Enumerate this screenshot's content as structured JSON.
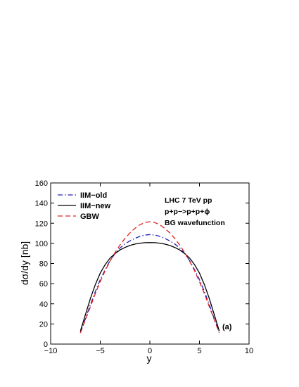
{
  "chart_data": {
    "type": "line",
    "xlabel": "y",
    "ylabel": "dσ/dy [nb]",
    "xlim": [
      -10,
      10
    ],
    "ylim": [
      0,
      160
    ],
    "xticks": [
      -10,
      -5,
      0,
      5,
      10
    ],
    "yticks": [
      0,
      20,
      40,
      60,
      80,
      100,
      120,
      140,
      160
    ],
    "grid": false,
    "legend_position": "top-left",
    "series": [
      {
        "name": "IIM−old",
        "color": "#2020c0",
        "dash": "dash-dot",
        "x": [
          -7,
          -6.5,
          -6,
          -5.5,
          -5,
          -4.5,
          -4,
          -3.5,
          -3,
          -2.5,
          -2,
          -1.5,
          -1,
          -0.5,
          0,
          0.5,
          1,
          1.5,
          2,
          2.5,
          3,
          3.5,
          4,
          4.5,
          5,
          5.5,
          6,
          6.5,
          7
        ],
        "y": [
          12,
          25,
          39,
          52,
          64,
          74,
          83,
          90,
          95.5,
          99.5,
          102.5,
          105,
          107,
          108.3,
          108.7,
          108.3,
          107,
          105,
          102.5,
          99.5,
          95.5,
          90,
          83,
          74,
          64,
          52,
          39,
          25,
          12
        ]
      },
      {
        "name": "IIM−new",
        "color": "#000000",
        "dash": "solid",
        "x": [
          -7,
          -6.5,
          -6,
          -5.5,
          -5,
          -4.5,
          -4,
          -3.5,
          -3,
          -2.5,
          -2,
          -1.5,
          -1,
          -0.5,
          0,
          0.5,
          1,
          1.5,
          2,
          2.5,
          3,
          3.5,
          4,
          4.5,
          5,
          5.5,
          6,
          6.5,
          7
        ],
        "y": [
          13,
          29,
          45,
          59,
          70.5,
          79,
          85.5,
          90,
          93.5,
          96,
          98,
          99.3,
          100.2,
          100.7,
          100.8,
          100.7,
          100.2,
          99.3,
          98,
          96,
          93.5,
          90,
          85.5,
          79,
          70.5,
          59,
          45,
          29,
          13
        ]
      },
      {
        "name": "GBW",
        "color": "#e02020",
        "dash": "dashed",
        "x": [
          -7,
          -6.5,
          -6,
          -5.5,
          -5,
          -4.5,
          -4,
          -3.5,
          -3,
          -2.5,
          -2,
          -1.5,
          -1,
          -0.5,
          0,
          0.5,
          1,
          1.5,
          2,
          2.5,
          3,
          3.5,
          4,
          4.5,
          5,
          5.5,
          6,
          6.5,
          7
        ],
        "y": [
          11,
          24,
          37,
          50,
          62,
          73,
          82.5,
          91,
          98.5,
          105,
          110.5,
          115,
          118.5,
          120.7,
          121.5,
          120.7,
          118.5,
          115,
          110.5,
          105,
          98.5,
          91,
          82.5,
          73,
          62,
          50,
          37,
          24,
          11
        ]
      }
    ],
    "annotations": [
      "LHC 7 TeV pp",
      "p+p−>p+p+ϕ",
      "BG wavefunction"
    ],
    "panel_label": "(a)"
  }
}
